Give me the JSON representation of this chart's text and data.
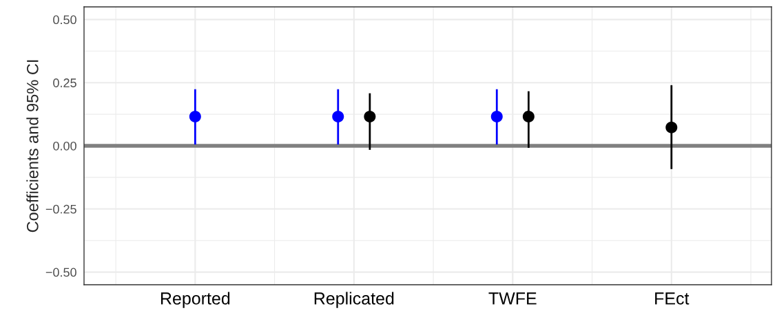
{
  "chart_data": {
    "type": "scatter",
    "ylabel": "Coefficients and 95% CI",
    "categories": [
      "Reported",
      "Replicated",
      "TWFE",
      "FEct"
    ],
    "series": [
      {
        "color": "#0000ff",
        "values": [
          0.116,
          0.116,
          0.116,
          null
        ],
        "errors": [
          [
            0.005,
            0.224
          ],
          [
            0.005,
            0.224
          ],
          [
            0.005,
            0.224
          ],
          null
        ]
      },
      {
        "color": "#000000",
        "values": [
          null,
          0.116,
          0.116,
          0.073
        ],
        "errors": [
          null,
          [
            -0.016,
            0.208
          ],
          [
            -0.008,
            0.216
          ],
          [
            -0.092,
            0.24
          ]
        ]
      }
    ],
    "ylim": [
      -0.55,
      0.55
    ],
    "yticks": [
      {
        "value": -0.5,
        "label": "−0.50"
      },
      {
        "value": -0.25,
        "label": "−0.25"
      },
      {
        "value": 0,
        "label": "0.00"
      },
      {
        "value": 0.25,
        "label": "0.25"
      },
      {
        "value": 0.5,
        "label": "0.50"
      }
    ],
    "ref_lines": [
      {
        "axis": "y",
        "value": 0,
        "color": "#808080"
      }
    ],
    "grid": true,
    "marker": "circle"
  }
}
